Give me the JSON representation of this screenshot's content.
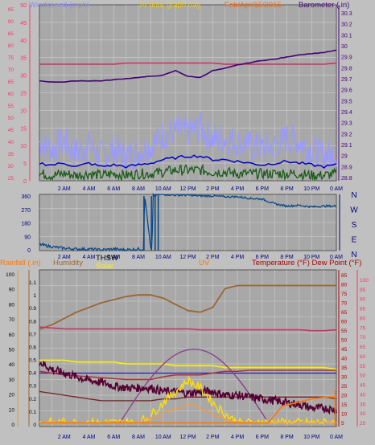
{
  "header": {
    "windspeed_label": "Windspeed (mph)",
    "period_label": "24 hour graph day",
    "date_label": "Feb/Apr/15/2015",
    "barometer_label": "Barometer (.in)"
  },
  "time_ticks": [
    "2 AM",
    "4 AM",
    "6 AM",
    "8 AM",
    "10 AM",
    "12 PM",
    "2 PM",
    "4 PM",
    "6 PM",
    "8 PM",
    "10 PM",
    "0 AM"
  ],
  "colors": {
    "wind": "#9999ff",
    "wind_avg": "#0000cc",
    "wind_low": "#1a5c1a",
    "barometer": "#440077",
    "temperature": "#cc3366",
    "direction": "#0a4a8a",
    "thsw": "#884488",
    "dewpoint": "#aa3333",
    "rainfall": "#ff7700",
    "humidity": "#996633",
    "solar": "#ffee00",
    "uv": "#bb6622",
    "heat": "#550033"
  },
  "chart_data": [
    {
      "type": "line",
      "title": "24 hour graph day",
      "ylabel_left": "Windspeed (mph)",
      "ylabel_right": "Barometer (.in)",
      "left_ticks": [
        "50",
        "45",
        "40",
        "35",
        "30",
        "25",
        "20",
        "15",
        "10",
        "5",
        "0"
      ],
      "red_ticks": [
        "95",
        "90",
        "85",
        "80",
        "75",
        "70",
        "65",
        "60",
        "55",
        "50",
        "45",
        "40",
        "35",
        "30",
        "25"
      ],
      "right_ticks": [
        "30.3",
        "30.2",
        "30.1",
        "30",
        "29.9",
        "29.8",
        "29.7",
        "29.6",
        "29.5",
        "29.4",
        "29.3",
        "29.2",
        "29.1",
        "29",
        "28.9",
        "28.8"
      ],
      "ylim_left": [
        0,
        50
      ],
      "ylim_right": [
        28.75,
        30.3
      ],
      "ylim_red": [
        20,
        97
      ],
      "x": [
        0,
        1,
        2,
        3,
        4,
        5,
        6,
        7,
        8,
        9,
        10,
        11,
        12,
        13,
        14,
        15,
        16,
        17,
        18,
        19,
        20,
        21,
        22,
        23,
        24
      ],
      "series": [
        {
          "name": "Barometer (.in)",
          "axis": "right",
          "values": [
            29.63,
            29.62,
            29.62,
            29.63,
            29.63,
            29.63,
            29.64,
            29.65,
            29.66,
            29.67,
            29.68,
            29.72,
            29.67,
            29.66,
            29.72,
            29.74,
            29.77,
            29.79,
            29.81,
            29.82,
            29.84,
            29.86,
            29.87,
            29.88,
            29.9
          ]
        },
        {
          "name": "temperature",
          "axis": "red",
          "values": [
            71,
            71,
            71,
            71,
            71,
            71,
            71,
            71.5,
            71.5,
            71.5,
            71.5,
            71.5,
            71.5,
            71.5,
            71.5,
            71,
            71,
            71,
            71,
            71,
            71,
            71,
            71,
            71,
            71.5
          ]
        },
        {
          "name": "wind-gust",
          "axis": "left",
          "values": [
            11,
            9,
            11,
            8,
            10,
            7,
            9,
            7,
            8,
            10,
            13,
            14,
            14,
            15,
            12,
            12,
            11,
            10,
            9,
            10,
            12,
            11,
            9,
            7,
            8
          ]
        },
        {
          "name": "wind-average",
          "axis": "left",
          "values": [
            5,
            4.5,
            5,
            4,
            5,
            4,
            4.5,
            4,
            4.5,
            5,
            6,
            6.5,
            7,
            7,
            6,
            6,
            5.5,
            5,
            4.5,
            5,
            5.5,
            5,
            4.5,
            4,
            4.5
          ]
        },
        {
          "name": "wind-low",
          "axis": "left",
          "values": [
            2,
            1.5,
            2,
            1.5,
            2,
            1.5,
            2,
            1.5,
            2,
            2,
            2.5,
            3,
            3,
            3,
            2.5,
            2.5,
            2,
            2,
            2,
            2,
            2,
            2,
            1.5,
            1.5,
            2
          ]
        }
      ]
    },
    {
      "type": "line",
      "ylabel_right": [
        "N",
        "W",
        "S",
        "E",
        "N"
      ],
      "left_ticks": [
        "360",
        "270",
        "180",
        "90",
        "0"
      ],
      "ylim": [
        0,
        360
      ],
      "x": [
        0,
        1,
        2,
        3,
        4,
        5,
        6,
        7,
        8,
        8.4,
        8.5,
        9,
        9.1,
        9.2,
        9.5,
        10,
        11,
        12,
        13,
        14,
        15,
        16,
        17,
        18,
        19,
        20,
        21,
        22,
        23,
        24
      ],
      "series": [
        {
          "name": "wind-direction",
          "values": [
            40,
            25,
            15,
            10,
            10,
            5,
            10,
            5,
            10,
            10,
            360,
            10,
            10,
            355,
            355,
            360,
            355,
            355,
            350,
            350,
            345,
            345,
            335,
            330,
            300,
            285,
            290,
            280,
            285,
            285
          ]
        }
      ]
    },
    {
      "type": "line",
      "labels": {
        "rainfall": "Rainfall (.in)",
        "humidity": "Humidity",
        "solar": "Solar",
        "thsw": "THSW",
        "uv": "UV",
        "temperature": "Temperature (°F)",
        "dewpoint": "Dew Point (°F)"
      },
      "axis_rain_ticks": [
        "100",
        "90",
        "80",
        "70",
        "60",
        "50",
        "40",
        "30",
        "20",
        "10",
        "0"
      ],
      "axis_hum_ticks": [
        "1.1",
        "1",
        "0.9",
        "0.8",
        "0.7",
        "0.6",
        "0.5",
        "0.4",
        "0.3",
        "0.2",
        "0.1",
        "0"
      ],
      "axis_temp_ticks": [
        "85",
        "80",
        "75",
        "70",
        "65",
        "60",
        "55",
        "50",
        "45",
        "40",
        "35",
        "30",
        "25",
        "20",
        "15",
        "10",
        "5"
      ],
      "axis_dew_ticks": [
        "100",
        "95",
        "90",
        "85",
        "80",
        "75",
        "70",
        "65",
        "60",
        "55",
        "50",
        "45",
        "40",
        "35",
        "30",
        "25"
      ],
      "ylim_temp": [
        3,
        88
      ],
      "x": [
        0,
        1,
        2,
        3,
        4,
        5,
        6,
        7,
        8,
        9,
        10,
        11,
        12,
        13,
        14,
        15,
        16,
        17,
        18,
        19,
        20,
        21,
        22,
        23,
        24
      ],
      "series": [
        {
          "name": "Humidity",
          "unit": "%",
          "values": [
            62,
            65,
            69,
            73,
            76,
            79,
            81,
            83,
            84,
            84,
            82,
            78,
            74,
            73,
            76,
            88,
            90,
            90,
            90,
            90,
            90,
            90,
            90,
            90,
            90
          ]
        },
        {
          "name": "Temperature (°F)",
          "values": [
            57,
            56.5,
            56,
            56,
            56,
            56,
            56,
            56,
            56,
            56,
            56,
            56,
            56,
            55.5,
            55.5,
            55.5,
            55.5,
            55.5,
            55.5,
            55.5,
            55.5,
            55.5,
            55,
            55,
            55.5
          ]
        },
        {
          "name": "Dew Point (°F)",
          "values": [
            33,
            32,
            31,
            30.5,
            30,
            29.5,
            29,
            28.5,
            28.5,
            28.5,
            30,
            31,
            31,
            31,
            32,
            33,
            33,
            33.5,
            33.5,
            33.5,
            33.5,
            33.5,
            33.5,
            33.5,
            33.5
          ]
        },
        {
          "name": "THSW",
          "values": [
            34,
            32,
            30,
            28,
            27,
            26,
            25,
            26,
            29,
            33,
            37,
            42,
            46,
            45,
            42,
            38,
            34,
            30,
            27,
            25,
            23,
            22,
            21,
            20,
            20
          ]
        },
        {
          "name": "Solar",
          "values": [
            39,
            39,
            39,
            38,
            38,
            38,
            38,
            37,
            37,
            37,
            37,
            36,
            36,
            36,
            36,
            35,
            35,
            35,
            35,
            35,
            35,
            35,
            35,
            35,
            34
          ]
        },
        {
          "name": "heat-index",
          "values": [
            22,
            21,
            20,
            19,
            18,
            17,
            17,
            17,
            17,
            17,
            18,
            18,
            19,
            19,
            19,
            19,
            19,
            19,
            19,
            19,
            19,
            19,
            19,
            19,
            18
          ]
        },
        {
          "name": "indoor-temp",
          "values": [
            32,
            32,
            32,
            32,
            32,
            32,
            32,
            32,
            32,
            32,
            32,
            32,
            32,
            32,
            32,
            32,
            32,
            32,
            32,
            32,
            32,
            32,
            32,
            32,
            32
          ]
        },
        {
          "name": "outdoor-temp-detail",
          "values": [
            38,
            34,
            32,
            30,
            28,
            27,
            25,
            24,
            24,
            24,
            22,
            22,
            21,
            22,
            22,
            20,
            20,
            19,
            18,
            17,
            16,
            15,
            13,
            13,
            12
          ]
        },
        {
          "name": "solar-radiation",
          "values": [
            5,
            5,
            5,
            5,
            5,
            5,
            5,
            5,
            5,
            9,
            16,
            22,
            28,
            24,
            16,
            10,
            5,
            5,
            5,
            5,
            5,
            5,
            5,
            5,
            5
          ]
        },
        {
          "name": "UV",
          "values": [
            5,
            5,
            5,
            5,
            5,
            5,
            5,
            5,
            5,
            7,
            10,
            13,
            15,
            13,
            10,
            7,
            5,
            5,
            5,
            5,
            5,
            5,
            5,
            5,
            5
          ]
        },
        {
          "name": "Rainfall (.in)",
          "values": [
            5,
            5,
            5,
            5,
            5,
            5,
            5,
            5,
            5,
            5,
            5,
            5,
            5,
            5,
            5,
            5,
            5,
            5,
            5,
            9,
            14,
            16,
            17,
            18,
            19
          ]
        }
      ]
    }
  ]
}
